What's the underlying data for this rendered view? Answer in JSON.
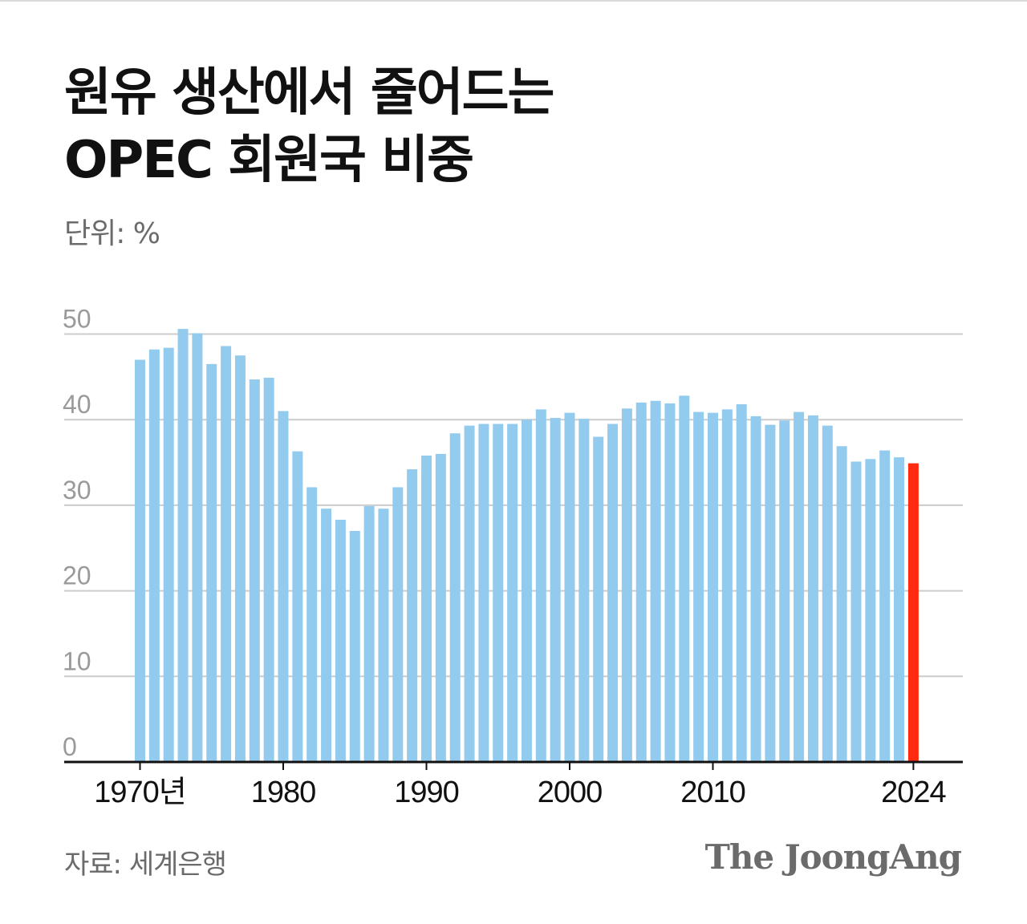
{
  "header": {
    "title_line1": "원유 생산에서 줄어드는",
    "title_line2": "OPEC 회원국 비중",
    "unit": "단위: %"
  },
  "footer": {
    "source": "자료: 세계은행",
    "logo": "The JoongAng"
  },
  "colors": {
    "bar": "#93cbee",
    "highlight": "#ff2a0f",
    "grid": "#cccccc",
    "axis": "#111111",
    "tick_text": "#9a9a9a"
  },
  "chart_data": {
    "type": "bar",
    "title": "원유 생산에서 줄어드는 OPEC 회원국 비중",
    "ylabel": "단위: %",
    "ylim": [
      0,
      50
    ],
    "y_ticks": [
      "0",
      "10",
      "20",
      "30",
      "40",
      "50"
    ],
    "x_ticks": [
      {
        "year": 1970,
        "label": "1970년"
      },
      {
        "year": 1980,
        "label": "1980"
      },
      {
        "year": 1990,
        "label": "1990"
      },
      {
        "year": 2000,
        "label": "2000"
      },
      {
        "year": 2010,
        "label": "2010"
      },
      {
        "year": 2024,
        "label": "2024"
      }
    ],
    "grid": true,
    "highlight_year": 2024,
    "years": [
      1970,
      1971,
      1972,
      1973,
      1974,
      1975,
      1976,
      1977,
      1978,
      1979,
      1980,
      1981,
      1982,
      1983,
      1984,
      1985,
      1986,
      1987,
      1988,
      1989,
      1990,
      1991,
      1992,
      1993,
      1994,
      1995,
      1996,
      1997,
      1998,
      1999,
      2000,
      2001,
      2002,
      2003,
      2004,
      2005,
      2006,
      2007,
      2008,
      2009,
      2010,
      2011,
      2012,
      2013,
      2014,
      2015,
      2016,
      2017,
      2018,
      2019,
      2020,
      2021,
      2022,
      2023,
      2024
    ],
    "values": [
      47.0,
      48.2,
      48.4,
      50.6,
      50.1,
      46.5,
      48.6,
      47.5,
      44.7,
      44.9,
      41.0,
      36.3,
      32.1,
      29.6,
      28.3,
      27.0,
      29.9,
      29.6,
      32.1,
      34.2,
      35.8,
      36.0,
      38.4,
      39.3,
      39.5,
      39.5,
      39.5,
      40.0,
      41.2,
      40.2,
      40.8,
      40.1,
      38.0,
      39.5,
      41.3,
      42.0,
      42.2,
      41.9,
      42.8,
      40.9,
      40.8,
      41.2,
      41.8,
      40.4,
      39.4,
      39.9,
      40.9,
      40.5,
      39.3,
      36.9,
      35.1,
      35.4,
      36.4,
      35.6,
      34.9
    ]
  }
}
